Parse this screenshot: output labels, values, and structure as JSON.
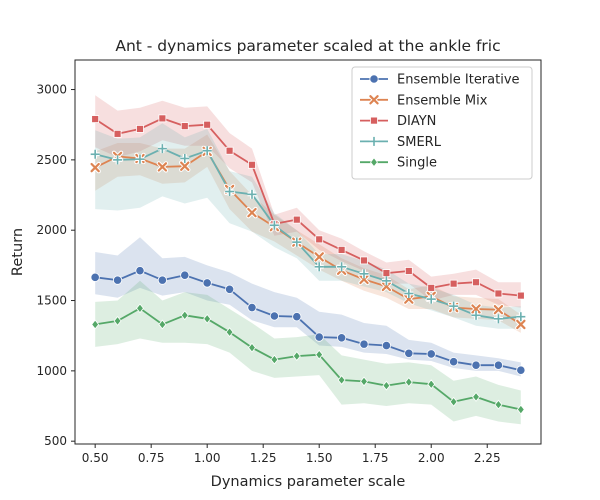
{
  "chart_data": {
    "type": "line",
    "title": "Ant - dynamics parameter scaled at the ankle fric",
    "xlabel": "Dynamics parameter scale",
    "ylabel": "Return",
    "xlim": [
      0.41,
      2.49
    ],
    "ylim": [
      480,
      3210
    ],
    "xticks": [
      0.5,
      0.75,
      1.0,
      1.25,
      1.5,
      1.75,
      2.0,
      2.25
    ],
    "xtick_labels": [
      "0.50",
      "0.75",
      "1.00",
      "1.25",
      "1.50",
      "1.75",
      "2.00",
      "2.25"
    ],
    "yticks": [
      500,
      1000,
      1500,
      2000,
      2500,
      3000
    ],
    "ytick_labels": [
      "500",
      "1000",
      "1500",
      "2000",
      "2500",
      "3000"
    ],
    "grid": false,
    "legend_position": "top-right",
    "x": [
      0.5,
      0.6,
      0.7,
      0.8,
      0.9,
      1.0,
      1.1,
      1.2,
      1.3,
      1.4,
      1.5,
      1.6,
      1.7,
      1.8,
      1.9,
      2.0,
      2.1,
      2.2,
      2.3,
      2.4
    ],
    "series": [
      {
        "name": "Ensemble Iterative",
        "color": "#4c72b0",
        "marker": "circle",
        "values": [
          1665,
          1645,
          1712,
          1645,
          1680,
          1625,
          1580,
          1450,
          1390,
          1385,
          1240,
          1235,
          1190,
          1180,
          1125,
          1120,
          1065,
          1040,
          1040,
          1005
        ],
        "lower": [
          1545,
          1520,
          1590,
          1535,
          1560,
          1500,
          1470,
          1360,
          1310,
          1310,
          1180,
          1170,
          1130,
          1120,
          1080,
          1070,
          1020,
          1000,
          1000,
          960
        ],
        "upper": [
          1845,
          1820,
          1950,
          1800,
          1810,
          1750,
          1700,
          1620,
          1560,
          1520,
          1420,
          1400,
          1340,
          1320,
          1220,
          1200,
          1130,
          1110,
          1090,
          1060
        ]
      },
      {
        "name": "Ensemble Mix",
        "color": "#dd8452",
        "marker": "x",
        "values": [
          2445,
          2525,
          2510,
          2450,
          2455,
          2560,
          2290,
          2125,
          2025,
          1915,
          1810,
          1715,
          1650,
          1600,
          1510,
          1530,
          1450,
          1440,
          1435,
          1330
        ],
        "lower": [
          2280,
          2380,
          2390,
          2330,
          2340,
          2450,
          2150,
          1990,
          1920,
          1820,
          1720,
          1640,
          1570,
          1520,
          1440,
          1440,
          1380,
          1370,
          1360,
          1270
        ],
        "upper": [
          2560,
          2620,
          2620,
          2580,
          2580,
          2680,
          2420,
          2250,
          2110,
          2000,
          1900,
          1800,
          1730,
          1680,
          1580,
          1610,
          1530,
          1520,
          1510,
          1400
        ]
      },
      {
        "name": "DIAYN",
        "color": "#d65f5f",
        "marker": "square",
        "values": [
          2790,
          2685,
          2720,
          2795,
          2740,
          2750,
          2565,
          2465,
          2045,
          2075,
          1935,
          1860,
          1785,
          1695,
          1710,
          1590,
          1620,
          1630,
          1550,
          1535
        ],
        "lower": [
          2590,
          2520,
          2560,
          2640,
          2600,
          2600,
          2440,
          2340,
          1960,
          1990,
          1860,
          1780,
          1710,
          1620,
          1620,
          1500,
          1540,
          1540,
          1470,
          1450
        ],
        "upper": [
          2960,
          2850,
          2870,
          2920,
          2870,
          2880,
          2690,
          2580,
          2110,
          2160,
          2000,
          1940,
          1850,
          1770,
          1790,
          1670,
          1690,
          1720,
          1630,
          1630
        ]
      },
      {
        "name": "SMERL",
        "color": "#6bb0b0",
        "marker": "plus",
        "values": [
          2540,
          2500,
          2505,
          2580,
          2510,
          2565,
          2275,
          2255,
          2035,
          1915,
          1740,
          1740,
          1690,
          1640,
          1550,
          1510,
          1460,
          1395,
          1370,
          1385
        ],
        "lower": [
          2150,
          2140,
          2160,
          2240,
          2190,
          2230,
          2050,
          1990,
          1880,
          1800,
          1640,
          1640,
          1600,
          1560,
          1480,
          1430,
          1380,
          1320,
          1300,
          1300
        ],
        "upper": [
          2710,
          2650,
          2660,
          2760,
          2660,
          2720,
          2420,
          2380,
          2120,
          2000,
          1830,
          1830,
          1780,
          1720,
          1620,
          1590,
          1540,
          1470,
          1450,
          1460
        ]
      },
      {
        "name": "Single",
        "color": "#55a868",
        "marker": "diamond",
        "values": [
          1330,
          1355,
          1445,
          1330,
          1395,
          1370,
          1275,
          1165,
          1080,
          1105,
          1115,
          935,
          925,
          895,
          920,
          905,
          780,
          815,
          760,
          725
        ],
        "lower": [
          1170,
          1190,
          1230,
          1200,
          1200,
          1190,
          1130,
          1000,
          950,
          960,
          970,
          760,
          770,
          750,
          770,
          760,
          640,
          680,
          640,
          620
        ],
        "upper": [
          1490,
          1500,
          1640,
          1500,
          1560,
          1540,
          1440,
          1340,
          1230,
          1240,
          1260,
          1110,
          1080,
          1050,
          1060,
          1040,
          930,
          960,
          900,
          860
        ]
      }
    ]
  }
}
